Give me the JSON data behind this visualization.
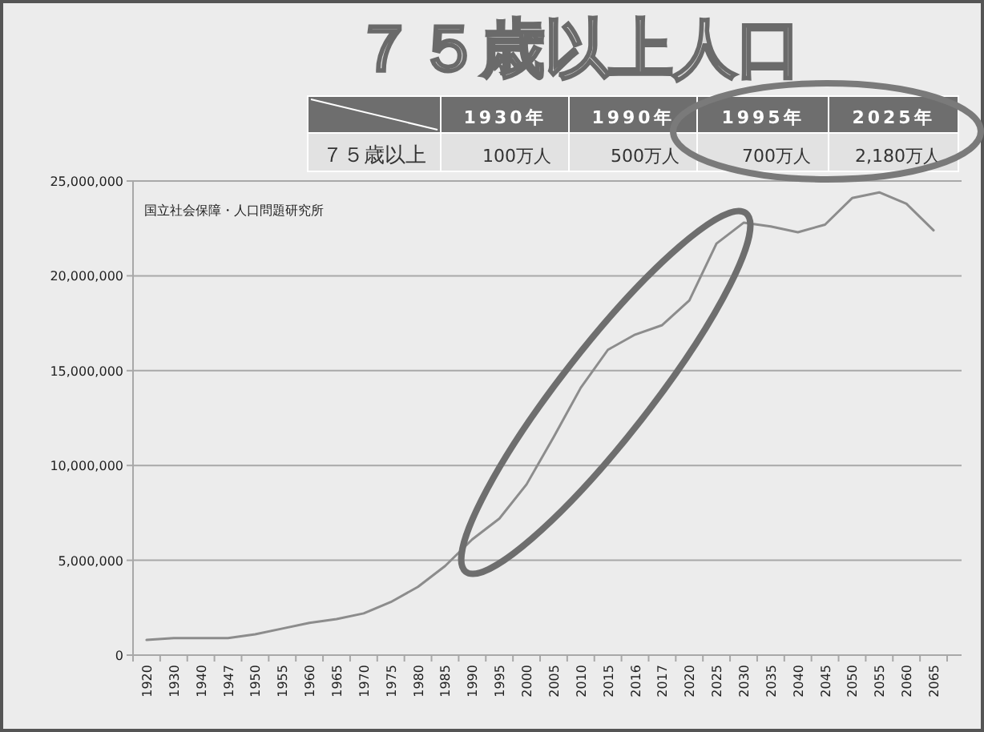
{
  "chart_data": {
    "type": "line",
    "title": "７５歳以上人口",
    "categories": [
      "1920",
      "1930",
      "1940",
      "1947",
      "1950",
      "1955",
      "1960",
      "1965",
      "1970",
      "1975",
      "1980",
      "1985",
      "1990",
      "1995",
      "2000",
      "2005",
      "2010",
      "2015",
      "2016",
      "2017",
      "2020",
      "2025",
      "2030",
      "2035",
      "2040",
      "2045",
      "2050",
      "2055",
      "2060",
      "2065"
    ],
    "series": [
      {
        "color": "#8c8c8c",
        "values": [
          800000,
          900000,
          900000,
          900000,
          1100000,
          1400000,
          1700000,
          1900000,
          2200000,
          2800000,
          3600000,
          4700000,
          6100000,
          7200000,
          9000000,
          11500000,
          14100000,
          16100000,
          16900000,
          17400000,
          18700000,
          21700000,
          22800000,
          22600000,
          22300000,
          22700000,
          24100000,
          24400000,
          23800000,
          22400000
        ]
      }
    ],
    "ylim": [
      0,
      25000000
    ],
    "yticks": [
      {
        "value": 0,
        "label": "0"
      },
      {
        "value": 5000000,
        "label": "5,000,000"
      },
      {
        "value": 10000000,
        "label": "10,000,000"
      },
      {
        "value": 15000000,
        "label": "15,000,000"
      },
      {
        "value": 20000000,
        "label": "20,000,000"
      },
      {
        "value": 25000000,
        "label": "25,000,000"
      }
    ],
    "grid": "y",
    "annotations": [
      "1930年",
      "1990年",
      "1995年",
      "2025年",
      "７５歳以上",
      "100万人",
      "500万人",
      "700万人",
      "2,180万人",
      "国立社会保障・人口問題研究所"
    ]
  }
}
